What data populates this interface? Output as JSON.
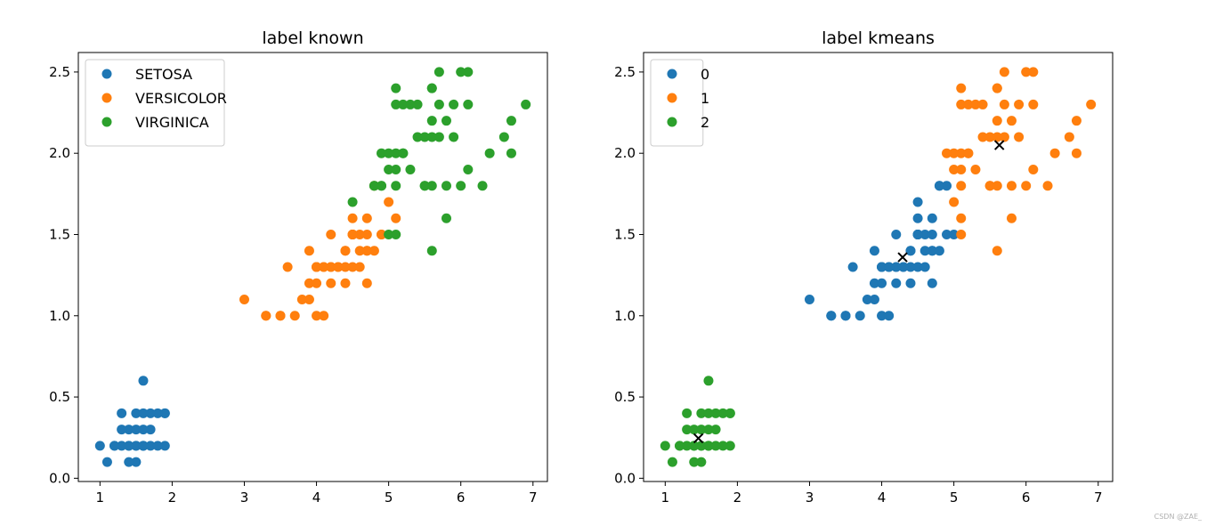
{
  "figure": {
    "watermark": "CSDN @ZAE_"
  },
  "chart_data": [
    {
      "type": "scatter",
      "title": "label known",
      "xlabel": "",
      "ylabel": "",
      "xlim": [
        0.7,
        7.2
      ],
      "ylim": [
        -0.02,
        2.62
      ],
      "xticks": [
        1,
        2,
        3,
        4,
        5,
        6,
        7
      ],
      "yticks": [
        0.0,
        0.5,
        1.0,
        1.5,
        2.0,
        2.5
      ],
      "legend": "top-left",
      "grid": false,
      "series": [
        {
          "name": "SETOSA",
          "color": "#1f77b4",
          "points": [
            [
              1.4,
              0.2
            ],
            [
              1.3,
              0.2
            ],
            [
              1.5,
              0.2
            ],
            [
              1.7,
              0.4
            ],
            [
              1.4,
              0.3
            ],
            [
              1.5,
              0.1
            ],
            [
              1.6,
              0.2
            ],
            [
              1.1,
              0.1
            ],
            [
              1.2,
              0.2
            ],
            [
              1.7,
              0.3
            ],
            [
              1.5,
              0.4
            ],
            [
              1.3,
              0.4
            ],
            [
              1.7,
              0.2
            ],
            [
              1.0,
              0.2
            ],
            [
              1.9,
              0.2
            ],
            [
              1.6,
              0.4
            ],
            [
              1.6,
              0.6
            ],
            [
              1.9,
              0.4
            ],
            [
              1.3,
              0.3
            ],
            [
              1.6,
              0.2
            ],
            [
              1.4,
              0.1
            ],
            [
              1.5,
              0.3
            ],
            [
              1.2,
              0.2
            ],
            [
              1.6,
              0.3
            ],
            [
              1.8,
              0.2
            ],
            [
              1.9,
              0.4
            ],
            [
              1.8,
              0.4
            ],
            [
              1.5,
              0.2
            ],
            [
              1.6,
              0.2
            ],
            [
              1.4,
              0.2
            ]
          ]
        },
        {
          "name": "VERSICOLOR",
          "color": "#ff7f0e",
          "points": [
            [
              4.7,
              1.4
            ],
            [
              4.5,
              1.5
            ],
            [
              4.9,
              1.5
            ],
            [
              4.0,
              1.3
            ],
            [
              4.6,
              1.5
            ],
            [
              4.5,
              1.3
            ],
            [
              4.7,
              1.6
            ],
            [
              3.3,
              1.0
            ],
            [
              4.6,
              1.3
            ],
            [
              3.9,
              1.4
            ],
            [
              3.5,
              1.0
            ],
            [
              4.2,
              1.5
            ],
            [
              4.0,
              1.0
            ],
            [
              4.7,
              1.4
            ],
            [
              3.6,
              1.3
            ],
            [
              4.4,
              1.4
            ],
            [
              4.5,
              1.5
            ],
            [
              4.1,
              1.0
            ],
            [
              4.5,
              1.5
            ],
            [
              3.9,
              1.1
            ],
            [
              4.8,
              1.8
            ],
            [
              4.0,
              1.3
            ],
            [
              4.9,
              1.5
            ],
            [
              4.7,
              1.2
            ],
            [
              4.3,
              1.3
            ],
            [
              4.4,
              1.4
            ],
            [
              4.8,
              1.4
            ],
            [
              5.0,
              1.7
            ],
            [
              4.5,
              1.5
            ],
            [
              3.5,
              1.0
            ],
            [
              3.8,
              1.1
            ],
            [
              3.7,
              1.0
            ],
            [
              3.9,
              1.2
            ],
            [
              5.1,
              1.6
            ],
            [
              4.5,
              1.5
            ],
            [
              4.5,
              1.6
            ],
            [
              4.7,
              1.5
            ],
            [
              4.4,
              1.3
            ],
            [
              4.1,
              1.3
            ],
            [
              4.0,
              1.3
            ],
            [
              4.4,
              1.2
            ],
            [
              4.6,
              1.4
            ],
            [
              4.0,
              1.2
            ],
            [
              3.3,
              1.0
            ],
            [
              4.2,
              1.3
            ],
            [
              4.2,
              1.2
            ],
            [
              4.2,
              1.3
            ],
            [
              4.3,
              1.3
            ],
            [
              3.0,
              1.1
            ],
            [
              4.1,
              1.3
            ]
          ]
        },
        {
          "name": "VIRGINICA",
          "color": "#2ca02c",
          "points": [
            [
              6.0,
              2.5
            ],
            [
              5.1,
              1.9
            ],
            [
              5.9,
              2.1
            ],
            [
              5.6,
              1.8
            ],
            [
              5.8,
              2.2
            ],
            [
              6.6,
              2.1
            ],
            [
              4.5,
              1.7
            ],
            [
              6.3,
              1.8
            ],
            [
              5.8,
              1.8
            ],
            [
              6.1,
              2.5
            ],
            [
              5.1,
              2.0
            ],
            [
              5.3,
              1.9
            ],
            [
              5.5,
              2.1
            ],
            [
              5.0,
              2.0
            ],
            [
              5.1,
              2.4
            ],
            [
              5.3,
              2.3
            ],
            [
              5.5,
              1.8
            ],
            [
              6.7,
              2.2
            ],
            [
              6.9,
              2.3
            ],
            [
              5.0,
              1.5
            ],
            [
              5.7,
              2.3
            ],
            [
              4.9,
              2.0
            ],
            [
              6.7,
              2.0
            ],
            [
              4.9,
              1.8
            ],
            [
              5.7,
              2.1
            ],
            [
              6.0,
              1.8
            ],
            [
              4.8,
              1.8
            ],
            [
              4.9,
              1.8
            ],
            [
              5.6,
              2.1
            ],
            [
              5.8,
              1.6
            ],
            [
              6.1,
              1.9
            ],
            [
              6.4,
              2.0
            ],
            [
              5.6,
              2.2
            ],
            [
              5.1,
              1.5
            ],
            [
              5.6,
              1.4
            ],
            [
              6.1,
              2.3
            ],
            [
              5.6,
              2.4
            ],
            [
              5.5,
              1.8
            ],
            [
              4.8,
              1.8
            ],
            [
              5.4,
              2.1
            ],
            [
              5.6,
              2.4
            ],
            [
              5.1,
              2.3
            ],
            [
              5.9,
              2.3
            ],
            [
              5.7,
              2.5
            ],
            [
              5.2,
              2.3
            ],
            [
              5.0,
              1.9
            ],
            [
              5.2,
              2.0
            ],
            [
              5.4,
              2.3
            ],
            [
              5.1,
              1.8
            ],
            [
              5.2,
              2.0
            ]
          ]
        }
      ]
    },
    {
      "type": "scatter",
      "title": "label kmeans",
      "xlabel": "",
      "ylabel": "",
      "xlim": [
        0.7,
        7.2
      ],
      "ylim": [
        -0.02,
        2.62
      ],
      "xticks": [
        1,
        2,
        3,
        4,
        5,
        6,
        7
      ],
      "yticks": [
        0.0,
        0.5,
        1.0,
        1.5,
        2.0,
        2.5
      ],
      "legend": "top-left",
      "grid": false,
      "series": [
        {
          "name": "0",
          "color": "#1f77b4",
          "points": [
            [
              4.7,
              1.4
            ],
            [
              4.5,
              1.5
            ],
            [
              4.0,
              1.3
            ],
            [
              4.6,
              1.5
            ],
            [
              4.5,
              1.3
            ],
            [
              4.7,
              1.6
            ],
            [
              3.3,
              1.0
            ],
            [
              4.6,
              1.3
            ],
            [
              3.9,
              1.4
            ],
            [
              3.5,
              1.0
            ],
            [
              4.2,
              1.5
            ],
            [
              4.0,
              1.0
            ],
            [
              4.7,
              1.4
            ],
            [
              3.6,
              1.3
            ],
            [
              4.4,
              1.4
            ],
            [
              4.5,
              1.5
            ],
            [
              4.1,
              1.0
            ],
            [
              4.5,
              1.5
            ],
            [
              3.9,
              1.1
            ],
            [
              4.8,
              1.8
            ],
            [
              4.0,
              1.3
            ],
            [
              4.9,
              1.5
            ],
            [
              4.7,
              1.2
            ],
            [
              4.3,
              1.3
            ],
            [
              4.4,
              1.4
            ],
            [
              4.8,
              1.4
            ],
            [
              4.5,
              1.5
            ],
            [
              3.5,
              1.0
            ],
            [
              3.8,
              1.1
            ],
            [
              3.7,
              1.0
            ],
            [
              3.9,
              1.2
            ],
            [
              4.5,
              1.5
            ],
            [
              4.5,
              1.6
            ],
            [
              4.7,
              1.5
            ],
            [
              4.4,
              1.3
            ],
            [
              4.1,
              1.3
            ],
            [
              4.0,
              1.3
            ],
            [
              4.4,
              1.2
            ],
            [
              4.6,
              1.4
            ],
            [
              4.0,
              1.2
            ],
            [
              3.3,
              1.0
            ],
            [
              4.2,
              1.3
            ],
            [
              4.2,
              1.2
            ],
            [
              4.2,
              1.3
            ],
            [
              4.3,
              1.3
            ],
            [
              3.0,
              1.1
            ],
            [
              4.1,
              1.3
            ],
            [
              4.5,
              1.7
            ],
            [
              4.9,
              1.8
            ],
            [
              4.8,
              1.8
            ],
            [
              5.0,
              1.5
            ]
          ]
        },
        {
          "name": "1",
          "color": "#ff7f0e",
          "points": [
            [
              6.0,
              2.5
            ],
            [
              5.1,
              1.9
            ],
            [
              5.9,
              2.1
            ],
            [
              5.6,
              1.8
            ],
            [
              5.8,
              2.2
            ],
            [
              6.6,
              2.1
            ],
            [
              6.3,
              1.8
            ],
            [
              5.8,
              1.8
            ],
            [
              6.1,
              2.5
            ],
            [
              5.1,
              2.0
            ],
            [
              5.3,
              1.9
            ],
            [
              5.5,
              2.1
            ],
            [
              5.0,
              2.0
            ],
            [
              5.1,
              2.4
            ],
            [
              5.3,
              2.3
            ],
            [
              5.5,
              1.8
            ],
            [
              6.7,
              2.2
            ],
            [
              6.9,
              2.3
            ],
            [
              5.7,
              2.3
            ],
            [
              4.9,
              2.0
            ],
            [
              6.7,
              2.0
            ],
            [
              5.7,
              2.1
            ],
            [
              6.0,
              1.8
            ],
            [
              5.6,
              2.1
            ],
            [
              5.8,
              1.6
            ],
            [
              6.1,
              1.9
            ],
            [
              6.4,
              2.0
            ],
            [
              5.6,
              2.2
            ],
            [
              5.1,
              1.5
            ],
            [
              5.6,
              1.4
            ],
            [
              6.1,
              2.3
            ],
            [
              5.6,
              2.4
            ],
            [
              5.5,
              1.8
            ],
            [
              5.4,
              2.1
            ],
            [
              5.6,
              2.4
            ],
            [
              5.1,
              2.3
            ],
            [
              5.9,
              2.3
            ],
            [
              5.7,
              2.5
            ],
            [
              5.2,
              2.3
            ],
            [
              5.0,
              1.9
            ],
            [
              5.2,
              2.0
            ],
            [
              5.4,
              2.3
            ],
            [
              5.1,
              1.8
            ],
            [
              5.2,
              2.0
            ],
            [
              5.0,
              1.7
            ],
            [
              5.1,
              1.6
            ]
          ]
        },
        {
          "name": "2",
          "color": "#2ca02c",
          "points": [
            [
              1.4,
              0.2
            ],
            [
              1.3,
              0.2
            ],
            [
              1.5,
              0.2
            ],
            [
              1.7,
              0.4
            ],
            [
              1.4,
              0.3
            ],
            [
              1.5,
              0.1
            ],
            [
              1.6,
              0.2
            ],
            [
              1.1,
              0.1
            ],
            [
              1.2,
              0.2
            ],
            [
              1.7,
              0.3
            ],
            [
              1.5,
              0.4
            ],
            [
              1.3,
              0.4
            ],
            [
              1.7,
              0.2
            ],
            [
              1.0,
              0.2
            ],
            [
              1.9,
              0.2
            ],
            [
              1.6,
              0.4
            ],
            [
              1.6,
              0.6
            ],
            [
              1.9,
              0.4
            ],
            [
              1.3,
              0.3
            ],
            [
              1.6,
              0.2
            ],
            [
              1.4,
              0.1
            ],
            [
              1.5,
              0.3
            ],
            [
              1.2,
              0.2
            ],
            [
              1.6,
              0.3
            ],
            [
              1.8,
              0.2
            ],
            [
              1.9,
              0.4
            ],
            [
              1.8,
              0.4
            ],
            [
              1.5,
              0.2
            ],
            [
              1.6,
              0.2
            ],
            [
              1.4,
              0.2
            ]
          ]
        }
      ],
      "centroids": {
        "color": "#000000",
        "marker": "x",
        "points": [
          [
            4.29,
            1.36
          ],
          [
            5.63,
            2.05
          ],
          [
            1.46,
            0.246
          ]
        ]
      }
    }
  ]
}
